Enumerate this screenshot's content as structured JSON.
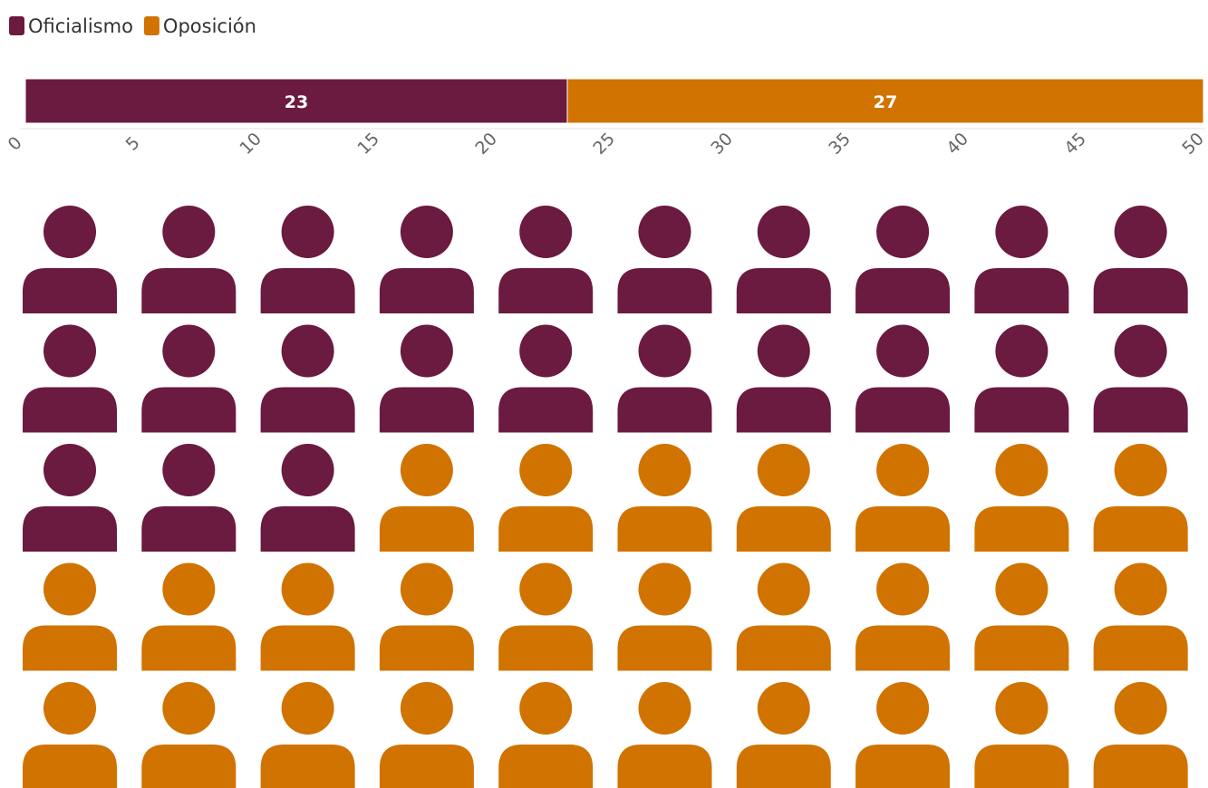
{
  "chart_data": {
    "type": "bar",
    "orientation": "horizontal-stacked",
    "series": [
      {
        "name": "Oficialismo",
        "value": 23,
        "color": "#6b1a40"
      },
      {
        "name": "Oposición",
        "value": 27,
        "color": "#d17300"
      }
    ],
    "xlim": [
      0,
      50
    ],
    "xticks": [
      0,
      5,
      10,
      15,
      20,
      25,
      30,
      35,
      40,
      45,
      50
    ],
    "grid": false,
    "legend_position": "top-left",
    "pictogram": {
      "icon": "person-icon",
      "columns": 10,
      "total": 50,
      "fill_order": "row-major"
    }
  }
}
